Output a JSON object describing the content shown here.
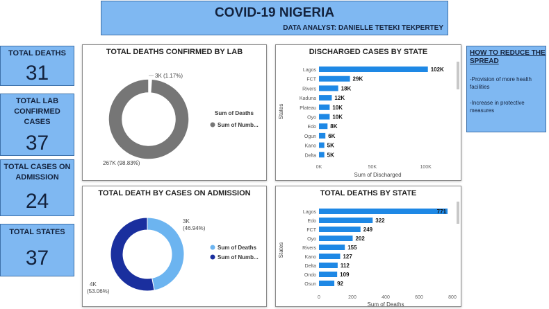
{
  "header": {
    "title": "COVID-19 NIGERIA",
    "subtitle": "DATA ANALYST: DANIELLE TETEKI TEKPERTEY"
  },
  "kpis": [
    {
      "label": "TOTAL DEATHS",
      "value": "31"
    },
    {
      "label": "TOTAL LAB CONFIRMED CASES",
      "value": "37"
    },
    {
      "label": "TOTAL CASES ON ADMISSION",
      "value": "24"
    },
    {
      "label": "TOTAL STATES",
      "value": "37"
    }
  ],
  "note": {
    "title": "HOW TO REDUCE THE SPREAD",
    "items": [
      "-Provision of more health facilities",
      "-Increase in protective measures"
    ]
  },
  "colors": {
    "bar": "#1e88e5",
    "donut_gray": "#767676",
    "donut_light": "#6cb4f0",
    "donut_dark": "#1a2f9e",
    "banner": "#7fb8f2"
  },
  "chart_data": [
    {
      "type": "pie",
      "title": "TOTAL DEATHS CONFIRMED BY LAB",
      "donut": true,
      "legend_title": "Sum of Deaths",
      "slices": [
        {
          "name": "Sum of Deaths",
          "value": 3,
          "label": "3K (1.17%)",
          "color": "#ffffff"
        },
        {
          "name": "Sum of Numb...",
          "value": 267,
          "label": "267K (98.83%)",
          "color": "#767676"
        }
      ],
      "legend": [
        "Sum of Numb..."
      ],
      "legend_position": "right"
    },
    {
      "type": "bar",
      "orientation": "horizontal",
      "title": "DISCHARGED CASES BY STATE",
      "ylabel": "States",
      "xlabel": "Sum of Discharged",
      "categories": [
        "Lagos",
        "FCT",
        "Rivers",
        "Kaduna",
        "Plateau",
        "Oyo",
        "Edo",
        "Ogun",
        "Kano",
        "Delta"
      ],
      "values": [
        102,
        29,
        18,
        12,
        10,
        10,
        8,
        6,
        5,
        5
      ],
      "data_labels": [
        "102K",
        "29K",
        "18K",
        "12K",
        "10K",
        "10K",
        "8K",
        "6K",
        "5K",
        "5K"
      ],
      "ticks": [
        0,
        50,
        100
      ],
      "tick_labels": [
        "0K",
        "50K",
        "100K"
      ],
      "xlim": [
        0,
        110
      ]
    },
    {
      "type": "pie",
      "title": "TOTAL DEATH BY CASES ON ADMISSION",
      "donut": true,
      "slices": [
        {
          "name": "Sum of Deaths",
          "value": 46.94,
          "label": "3K",
          "pct_label": "(46.94%)",
          "color": "#6cb4f0"
        },
        {
          "name": "Sum of Numb...",
          "value": 53.06,
          "label": "4K",
          "pct_label": "(53.06%)",
          "color": "#1a2f9e"
        }
      ],
      "legend": [
        "Sum of Deaths",
        "Sum of Numb..."
      ],
      "legend_position": "right"
    },
    {
      "type": "bar",
      "orientation": "horizontal",
      "title": "TOTAL DEATHS BY STATE",
      "ylabel": "States",
      "xlabel": "Sum of Deaths",
      "categories": [
        "Lagos",
        "Edo",
        "FCT",
        "Oyo",
        "Rivers",
        "Kano",
        "Delta",
        "Ondo",
        "Osun"
      ],
      "values": [
        771,
        322,
        249,
        202,
        155,
        127,
        112,
        109,
        92
      ],
      "data_labels": [
        "771",
        "322",
        "249",
        "202",
        "155",
        "127",
        "112",
        "109",
        "92"
      ],
      "ticks": [
        0,
        200,
        400,
        600,
        800
      ],
      "tick_labels": [
        "0",
        "200",
        "400",
        "600",
        "800"
      ],
      "xlim": [
        0,
        800
      ]
    }
  ]
}
